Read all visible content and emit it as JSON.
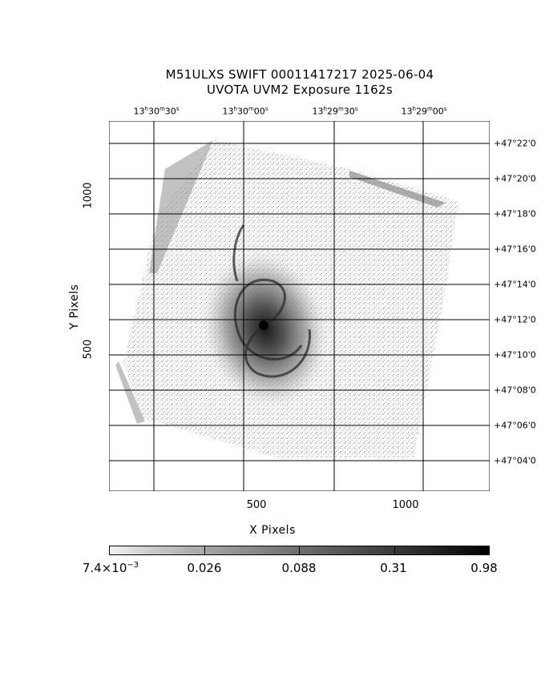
{
  "header": {
    "line1": "M51ULXS SWIFT 00011417217 2025-06-04",
    "line2": "UVOTA UVM2 Exposure       1162s"
  },
  "ra_labels": [
    {
      "h": "13",
      "m": "30",
      "s": "30"
    },
    {
      "h": "13",
      "m": "30",
      "s": "00"
    },
    {
      "h": "13",
      "m": "29",
      "s": "30"
    },
    {
      "h": "13",
      "m": "29",
      "s": "00"
    }
  ],
  "dec_labels": [
    {
      "d": "+47",
      "m": "22",
      "s": "0"
    },
    {
      "d": "+47",
      "m": "20",
      "s": "0"
    },
    {
      "d": "+47",
      "m": "18",
      "s": "0"
    },
    {
      "d": "+47",
      "m": "16",
      "s": "0"
    },
    {
      "d": "+47",
      "m": "14",
      "s": "0"
    },
    {
      "d": "+47",
      "m": "12",
      "s": "0"
    },
    {
      "d": "+47",
      "m": "10",
      "s": "0"
    },
    {
      "d": "+47",
      "m": "08",
      "s": "0"
    },
    {
      "d": "+47",
      "m": "06",
      "s": "0"
    },
    {
      "d": "+47",
      "m": "04",
      "s": "0"
    }
  ],
  "axes": {
    "x_label": "X Pixels",
    "y_label": "Y Pixels",
    "x_ticks": [
      "500",
      "1000"
    ],
    "y_ticks": [
      "500",
      "1000"
    ]
  },
  "colorbar": {
    "min_base": "7.4×10",
    "min_exp": "−3",
    "labels": [
      "0.026",
      "0.088",
      "0.31",
      "0.98"
    ]
  }
}
